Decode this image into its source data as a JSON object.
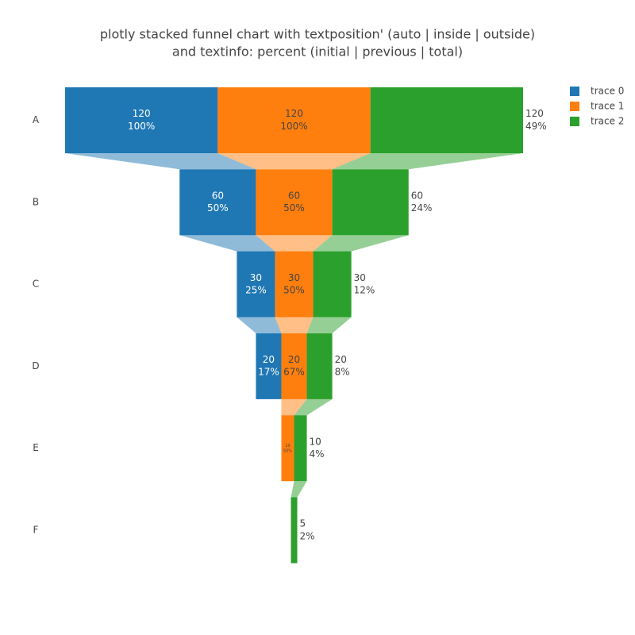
{
  "chart_data": {
    "type": "funnel",
    "title": [
      "plotly stacked funnel chart with textposition' (auto | inside | outside)",
      "and textinfo: percent (initial | previous | total)"
    ],
    "categories": [
      "A",
      "B",
      "C",
      "D",
      "E",
      "F"
    ],
    "series": [
      {
        "name": "trace 0",
        "color": "#1f77b4",
        "text_color": "#ffffff",
        "textposition": "inside",
        "values": [
          120,
          60,
          30,
          20,
          null,
          null
        ],
        "value_labels": [
          "100%",
          "50%",
          "25%",
          "17%",
          null,
          null
        ]
      },
      {
        "name": "trace 1",
        "color": "#ff7f0e",
        "text_color": "#444444",
        "textposition": "inside",
        "values": [
          120,
          60,
          30,
          20,
          10,
          null
        ],
        "value_labels": [
          "100%",
          "50%",
          "50%",
          "67%",
          "50%",
          null
        ]
      },
      {
        "name": "trace 2",
        "color": "#2ca02c",
        "text_color": "#444444",
        "textposition": "outside",
        "values": [
          120,
          60,
          30,
          20,
          10,
          5
        ],
        "value_labels": [
          "49%",
          "24%",
          "12%",
          "8%",
          "4%",
          "2%"
        ]
      }
    ],
    "legend": "top-right"
  }
}
